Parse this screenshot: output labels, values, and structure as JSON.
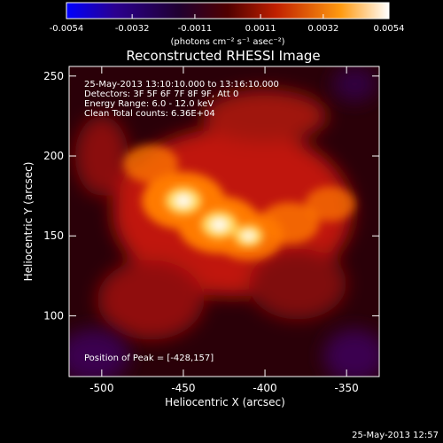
{
  "colorbar": {
    "ticks": [
      "-0.0054",
      "-0.0032",
      "-0.0011",
      "0.0011",
      "0.0032",
      "0.0054"
    ],
    "unit_label": "(photons cm⁻² s⁻¹ asec⁻²)",
    "min": -0.0054,
    "max": 0.0054
  },
  "header": {
    "title": "Reconstructed RHESSI Image",
    "info_lines": [
      "25-May-2013 13:10:10.000 to 13:16:10.000",
      "Detectors: 3F 5F 6F 7F 8F 9F, Att 0",
      "Energy Range: 6.0 - 12.0 keV",
      "Clean     Total counts: 6.36E+04"
    ],
    "peak_label": "Position of Peak = [-428,157]"
  },
  "footer": {
    "timestamp": "25-May-2013 12:57"
  },
  "chart_data": {
    "type": "heatmap",
    "title": "Reconstructed RHESSI Image",
    "xlabel": "Heliocentric X (arcsec)",
    "ylabel": "Heliocentric Y (arcsec)",
    "xlim": [
      -520,
      -330
    ],
    "ylim": [
      62,
      256
    ],
    "xticks": [
      -500,
      -450,
      -400,
      -350
    ],
    "yticks": [
      100,
      150,
      200,
      250
    ],
    "peak": {
      "x": -428,
      "y": 157
    },
    "sources": [
      {
        "x": -450,
        "y": 172,
        "intensity": 1.0
      },
      {
        "x": -428,
        "y": 157,
        "intensity": 1.0
      },
      {
        "x": -410,
        "y": 150,
        "intensity": 0.75
      },
      {
        "x": -385,
        "y": 158,
        "intensity": 0.55
      },
      {
        "x": -360,
        "y": 170,
        "intensity": 0.35
      },
      {
        "x": -470,
        "y": 195,
        "intensity": 0.45
      }
    ],
    "colormap": [
      "#0000ff",
      "#3b0070",
      "#000000",
      "#a01000",
      "#ff6a00",
      "#ffffff"
    ]
  }
}
